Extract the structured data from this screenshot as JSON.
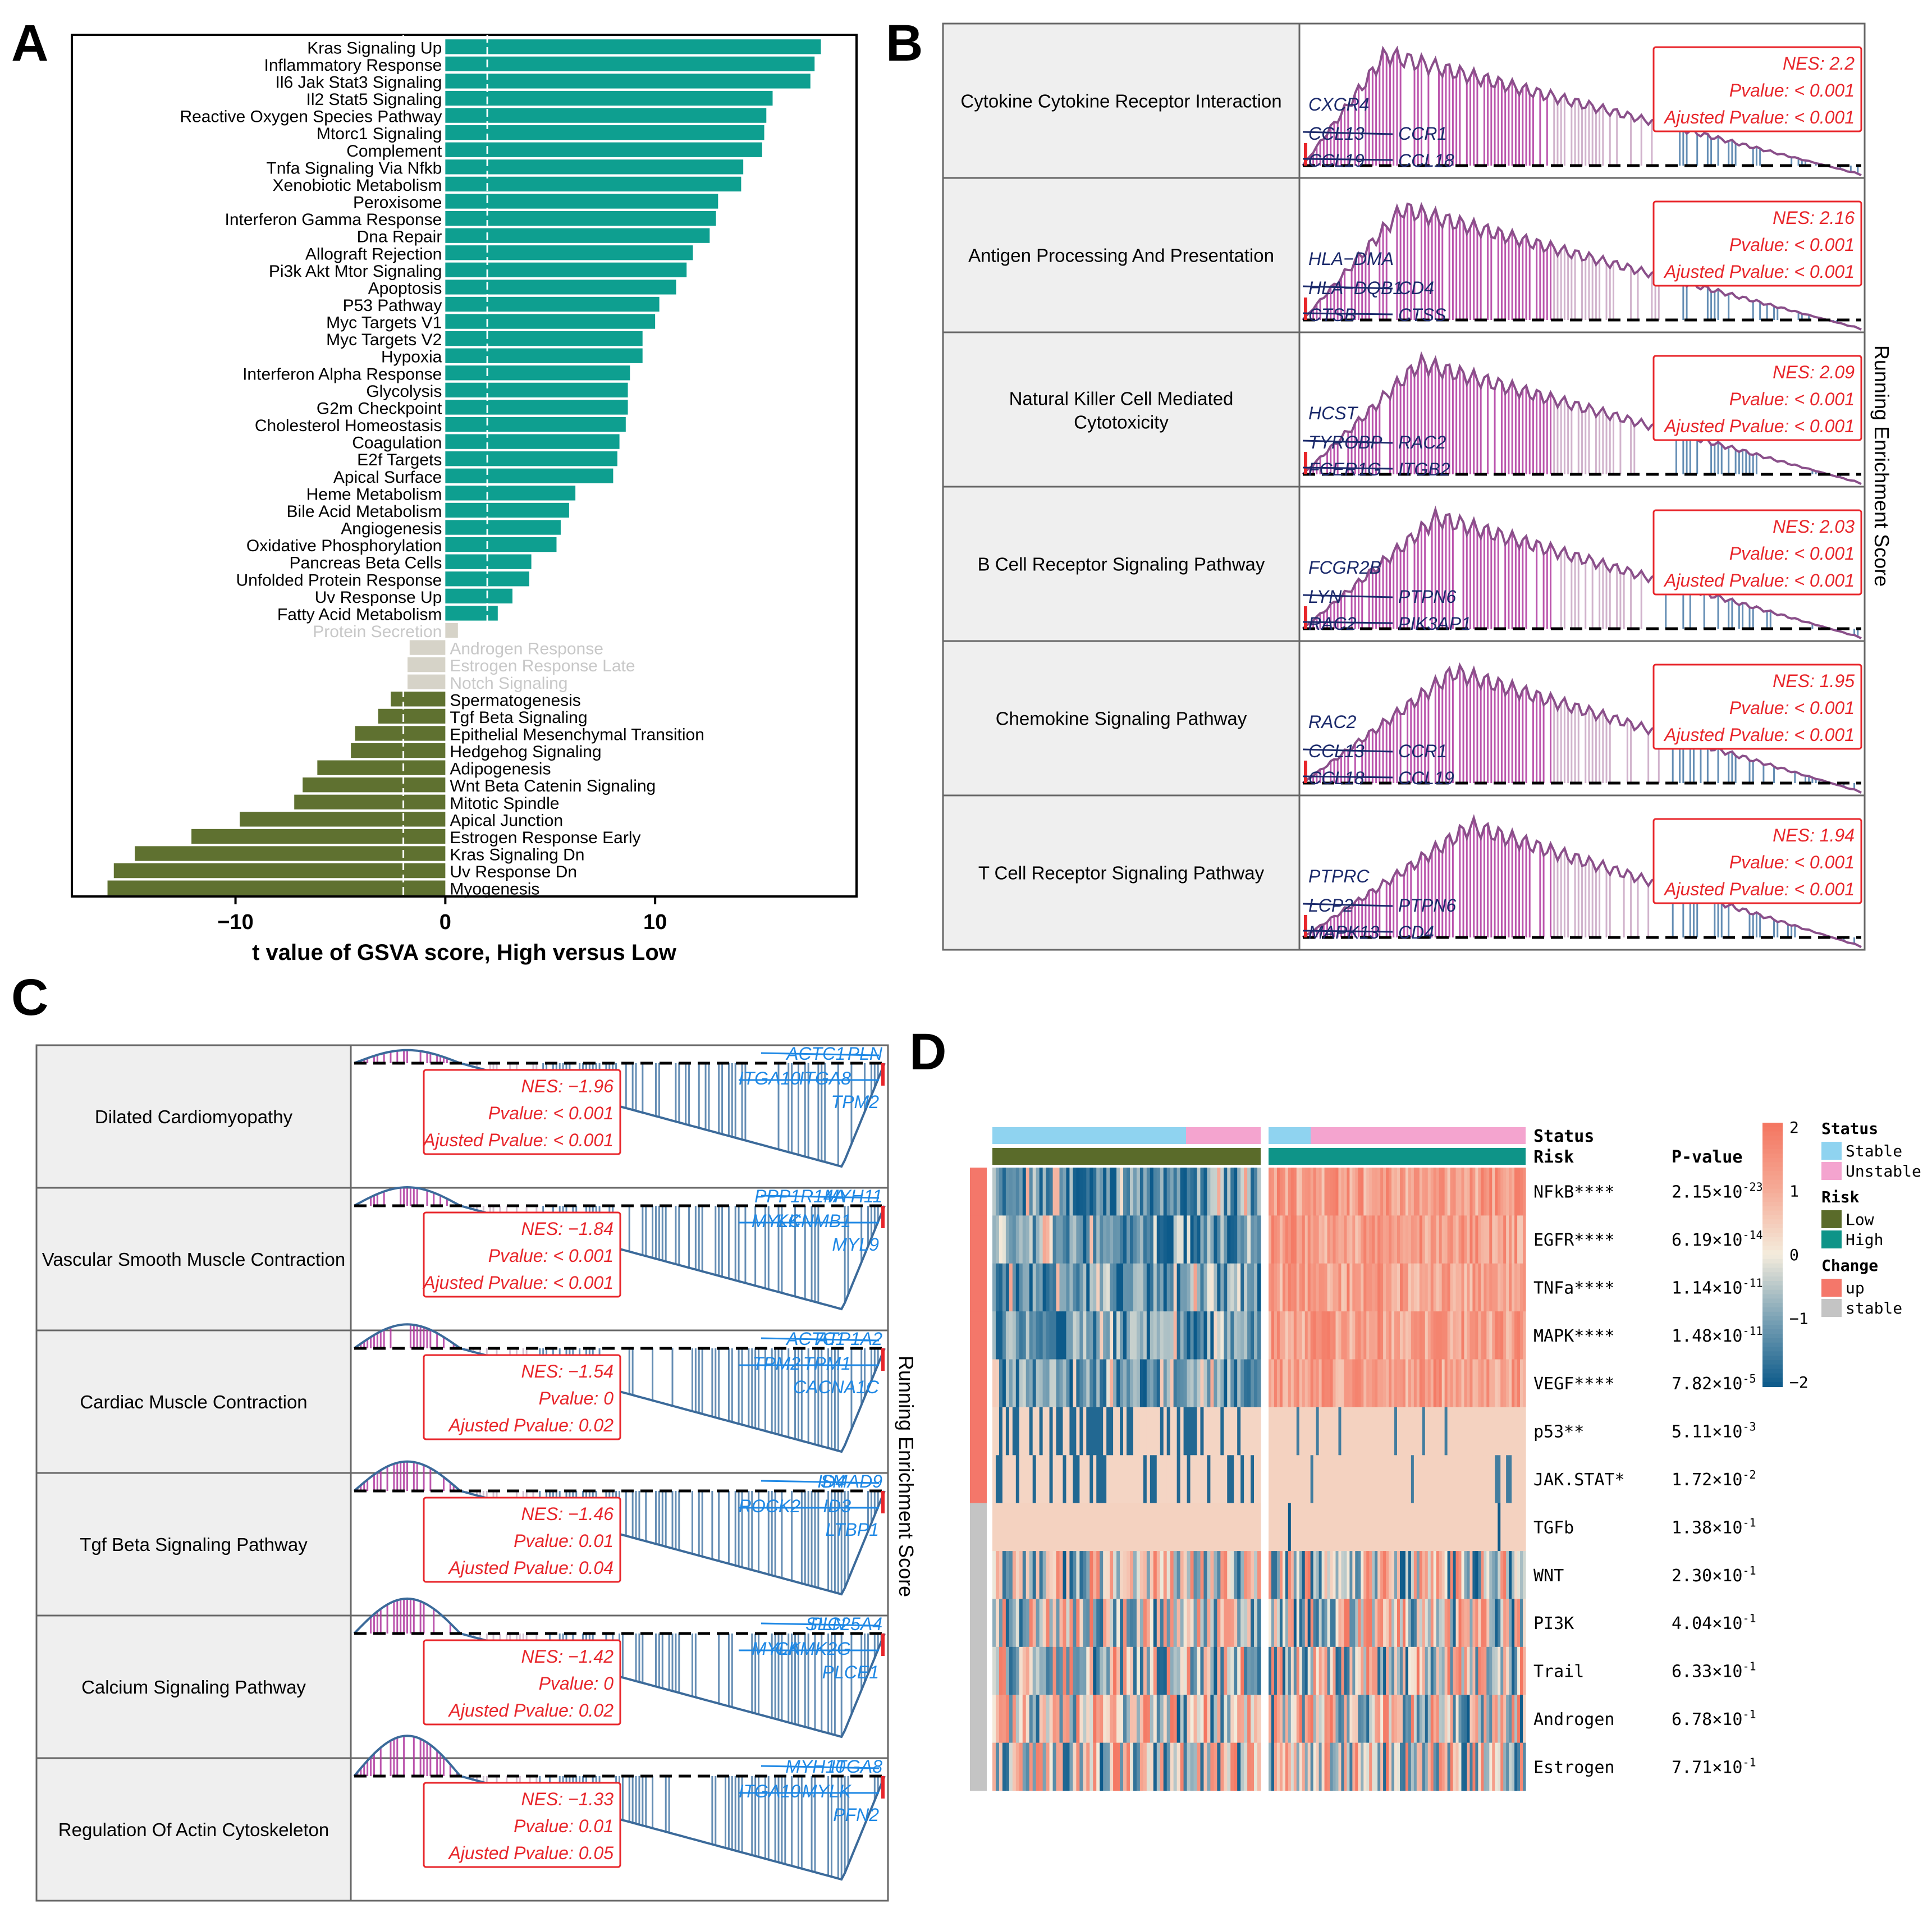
{
  "panels": {
    "A": "A",
    "B": "B",
    "C": "C",
    "D": "D"
  },
  "colors": {
    "up_bar": "#0e9f90",
    "down_bar": "#5f7130",
    "ns_bar": "#d6d3c8",
    "ns_text": "#c8c8c8",
    "nes_red": "#e8262b",
    "gene_dark": "#1b2a6b",
    "gene_light": "#1e88e5",
    "purple": "#b0389f",
    "blue_tail": "#4a7aa8",
    "heat_high": "#f47560",
    "heat_low": "#0c5a8a"
  },
  "chart_data": [
    {
      "panel": "A",
      "type": "bar",
      "orientation": "horizontal",
      "xlabel": "t value of GSVA score, High versus Low",
      "xlim": [
        -17.8,
        19.6
      ],
      "xticks": [
        -10,
        0,
        10
      ],
      "tick_labels": [
        "−10",
        "0",
        "10"
      ],
      "threshold_lines": [
        -2,
        2
      ],
      "categories": [
        "Kras Signaling Up",
        "Inflammatory Response",
        "Il6 Jak Stat3 Signaling",
        "Il2 Stat5 Signaling",
        "Reactive Oxygen Species Pathway",
        "Mtorc1 Signaling",
        "Complement",
        "Tnfa Signaling Via Nfkb",
        "Xenobiotic Metabolism",
        "Peroxisome",
        "Interferon Gamma Response",
        "Dna Repair",
        "Allograft Rejection",
        "Pi3k Akt Mtor Signaling",
        "Apoptosis",
        "P53 Pathway",
        "Myc Targets V1",
        "Myc Targets V2",
        "Hypoxia",
        "Interferon Alpha Response",
        "Glycolysis",
        "G2m Checkpoint",
        "Cholesterol Homeostasis",
        "Coagulation",
        "E2f Targets",
        "Apical Surface",
        "Heme Metabolism",
        "Bile Acid Metabolism",
        "Angiogenesis",
        "Oxidative Phosphorylation",
        "Pancreas Beta Cells",
        "Unfolded Protein Response",
        "Uv Response Up",
        "Fatty Acid Metabolism",
        "Protein Secretion",
        "Androgen Response",
        "Estrogen Response Late",
        "Notch Signaling",
        "Spermatogenesis",
        "Tgf Beta Signaling",
        "Epithelial Mesenchymal Transition",
        "Hedgehog Signaling",
        "Adipogenesis",
        "Wnt Beta Catenin Signaling",
        "Mitotic Spindle",
        "Apical Junction",
        "Estrogen Response Early",
        "Kras Signaling Dn",
        "Uv Response Dn",
        "Myogenesis"
      ],
      "values": [
        17.9,
        17.6,
        17.4,
        15.6,
        15.3,
        15.2,
        15.1,
        14.2,
        14.1,
        13.0,
        12.9,
        12.6,
        11.8,
        11.5,
        11.0,
        10.2,
        10.0,
        9.4,
        9.4,
        8.8,
        8.7,
        8.7,
        8.6,
        8.3,
        8.2,
        8.0,
        6.2,
        5.9,
        5.5,
        5.3,
        4.1,
        4.0,
        3.2,
        2.5,
        0.6,
        -1.7,
        -1.8,
        -1.8,
        -2.6,
        -3.2,
        -4.3,
        -4.5,
        -6.1,
        -6.8,
        -7.2,
        -9.8,
        -12.1,
        -14.8,
        -15.8,
        -16.1
      ],
      "group": [
        "up",
        "up",
        "up",
        "up",
        "up",
        "up",
        "up",
        "up",
        "up",
        "up",
        "up",
        "up",
        "up",
        "up",
        "up",
        "up",
        "up",
        "up",
        "up",
        "up",
        "up",
        "up",
        "up",
        "up",
        "up",
        "up",
        "up",
        "up",
        "up",
        "up",
        "up",
        "up",
        "up",
        "up",
        "ns",
        "ns",
        "ns",
        "ns",
        "down",
        "down",
        "down",
        "down",
        "down",
        "down",
        "down",
        "down",
        "down",
        "down",
        "down",
        "down"
      ]
    },
    {
      "panel": "B",
      "type": "line",
      "subtype": "gsea-enrichment",
      "ylabel": "Running Enrichment Score",
      "panels": [
        {
          "name": "Cytokine Cytokine Receptor Interaction",
          "nes": "NES: 2.2",
          "pvalue": "Pvalue: < 0.001",
          "adj": "Ajusted Pvalue: < 0.001",
          "genes": [
            "CXCR4",
            "CCL13",
            "CCR1",
            "CCL19",
            "CCL18"
          ]
        },
        {
          "name": "Antigen Processing And Presentation",
          "nes": "NES: 2.16",
          "pvalue": "Pvalue: < 0.001",
          "adj": "Ajusted Pvalue: < 0.001",
          "genes": [
            "HLA−DMA",
            "HLA−DQB1",
            "CD4",
            "CTSB",
            "CTSS"
          ]
        },
        {
          "name": "Natural Killer Cell Mediated",
          "name2": "Cytotoxicity",
          "nes": "NES: 2.09",
          "pvalue": "Pvalue: < 0.001",
          "adj": "Ajusted Pvalue: < 0.001",
          "genes": [
            "HCST",
            "TYROBP",
            "RAC2",
            "FCER1G",
            "ITGB2"
          ]
        },
        {
          "name": "B Cell Receptor Signaling Pathway",
          "nes": "NES: 2.03",
          "pvalue": "Pvalue: < 0.001",
          "adj": "Ajusted Pvalue: < 0.001",
          "genes": [
            "FCGR2B",
            "LYN",
            "PTPN6",
            "RAC2",
            "PIK3AP1"
          ]
        },
        {
          "name": "Chemokine Signaling Pathway",
          "nes": "NES: 1.95",
          "pvalue": "Pvalue: < 0.001",
          "adj": "Ajusted Pvalue: < 0.001",
          "genes": [
            "RAC2",
            "CCL13",
            "CCR1",
            "CCL18",
            "CCL19"
          ]
        },
        {
          "name": "T Cell Receptor Signaling Pathway",
          "nes": "NES: 1.94",
          "pvalue": "Pvalue: < 0.001",
          "adj": "Ajusted Pvalue: < 0.001",
          "genes": [
            "PTPRC",
            "LCP2",
            "PTPN6",
            "MAPK13",
            "CD4"
          ]
        }
      ]
    },
    {
      "panel": "C",
      "type": "line",
      "subtype": "gsea-enrichment",
      "ylabel": "Running Enrichment Score",
      "panels": [
        {
          "name": "Dilated Cardiomyopathy",
          "nes": "NES: −1.96",
          "pvalue": "Pvalue: < 0.001",
          "adj": "Ajusted Pvalue: < 0.001",
          "genes": [
            "ACTC1",
            "PLN",
            "ITGA10",
            "ITGA8",
            "TPM2"
          ]
        },
        {
          "name": "Vascular Smooth Muscle Contraction",
          "nes": "NES: −1.84",
          "pvalue": "Pvalue: < 0.001",
          "adj": "Ajusted Pvalue: < 0.001",
          "genes": [
            "PPP1R14A",
            "MYH11",
            "MYLK",
            "KCNMB1",
            "MYL9"
          ]
        },
        {
          "name": "Cardiac Muscle Contraction",
          "nes": "NES: −1.54",
          "pvalue": "Pvalue: 0",
          "adj": "Ajusted Pvalue: 0.02",
          "genes": [
            "ACTC1",
            "ATP1A2",
            "TPM2",
            "TPM1",
            "CACNA1C"
          ]
        },
        {
          "name": "Tgf Beta Signaling Pathway",
          "nes": "NES: −1.46",
          "pvalue": "Pvalue: 0.01",
          "adj": "Ajusted Pvalue: 0.04",
          "genes": [
            "ID4",
            "SMAD9",
            "ROCK2",
            "ID3",
            "LTBP1"
          ]
        },
        {
          "name": "Calcium Signaling Pathway",
          "nes": "NES: −1.42",
          "pvalue": "Pvalue: 0",
          "adj": "Ajusted Pvalue: 0.02",
          "genes": [
            "PLN",
            "SLC25A4",
            "MYLK",
            "CAMK2G",
            "PLCE1"
          ]
        },
        {
          "name": "Regulation Of Actin Cytoskeleton",
          "nes": "NES: −1.33",
          "pvalue": "Pvalue: 0.01",
          "adj": "Ajusted Pvalue: 0.05",
          "genes": [
            "MYH10",
            "ITGA8",
            "ITGA10",
            "MYLK",
            "PFN2"
          ]
        }
      ]
    },
    {
      "panel": "D",
      "type": "heatmap",
      "annotation_tracks": [
        "Status",
        "Risk"
      ],
      "pvalue_header": "P-value",
      "rows": [
        {
          "label": "NFkB****",
          "pbase": "2.15×10",
          "pexp": "-23",
          "change": "up"
        },
        {
          "label": "EGFR****",
          "pbase": "6.19×10",
          "pexp": "-14",
          "change": "up"
        },
        {
          "label": "TNFa****",
          "pbase": "1.14×10",
          "pexp": "-11",
          "change": "up"
        },
        {
          "label": "MAPK****",
          "pbase": "1.48×10",
          "pexp": "-11",
          "change": "up"
        },
        {
          "label": "VEGF****",
          "pbase": "7.82×10",
          "pexp": "-5",
          "change": "up"
        },
        {
          "label": "p53**",
          "pbase": "5.11×10",
          "pexp": "-3",
          "change": "up"
        },
        {
          "label": "JAK.STAT*",
          "pbase": "1.72×10",
          "pexp": "-2",
          "change": "up"
        },
        {
          "label": "TGFb",
          "pbase": "1.38×10",
          "pexp": "-1",
          "change": "stable"
        },
        {
          "label": "WNT",
          "pbase": "2.30×10",
          "pexp": "-1",
          "change": "stable"
        },
        {
          "label": "PI3K",
          "pbase": "4.04×10",
          "pexp": "-1",
          "change": "stable"
        },
        {
          "label": "Trail",
          "pbase": "6.33×10",
          "pexp": "-1",
          "change": "stable"
        },
        {
          "label": "Androgen",
          "pbase": "6.78×10",
          "pexp": "-1",
          "change": "stable"
        },
        {
          "label": "Estrogen",
          "pbase": "7.71×10",
          "pexp": "-1",
          "change": "stable"
        }
      ],
      "colorbar": {
        "ticks": [
          "2",
          "1",
          "0",
          "−1",
          "−2"
        ],
        "range": [
          -2,
          2
        ]
      },
      "legends": [
        {
          "title": "Status",
          "items": [
            {
              "label": "Stable",
              "color": "#8fd3f0"
            },
            {
              "label": "Unstable",
              "color": "#f4a4cf"
            }
          ]
        },
        {
          "title": "Risk",
          "items": [
            {
              "label": "Low",
              "color": "#5a6b2a"
            },
            {
              "label": "High",
              "color": "#0e9488"
            }
          ]
        },
        {
          "title": "Change",
          "items": [
            {
              "label": "up",
              "color": "#f4776a"
            },
            {
              "label": "stable",
              "color": "#c4c4c4"
            }
          ]
        }
      ]
    }
  ]
}
